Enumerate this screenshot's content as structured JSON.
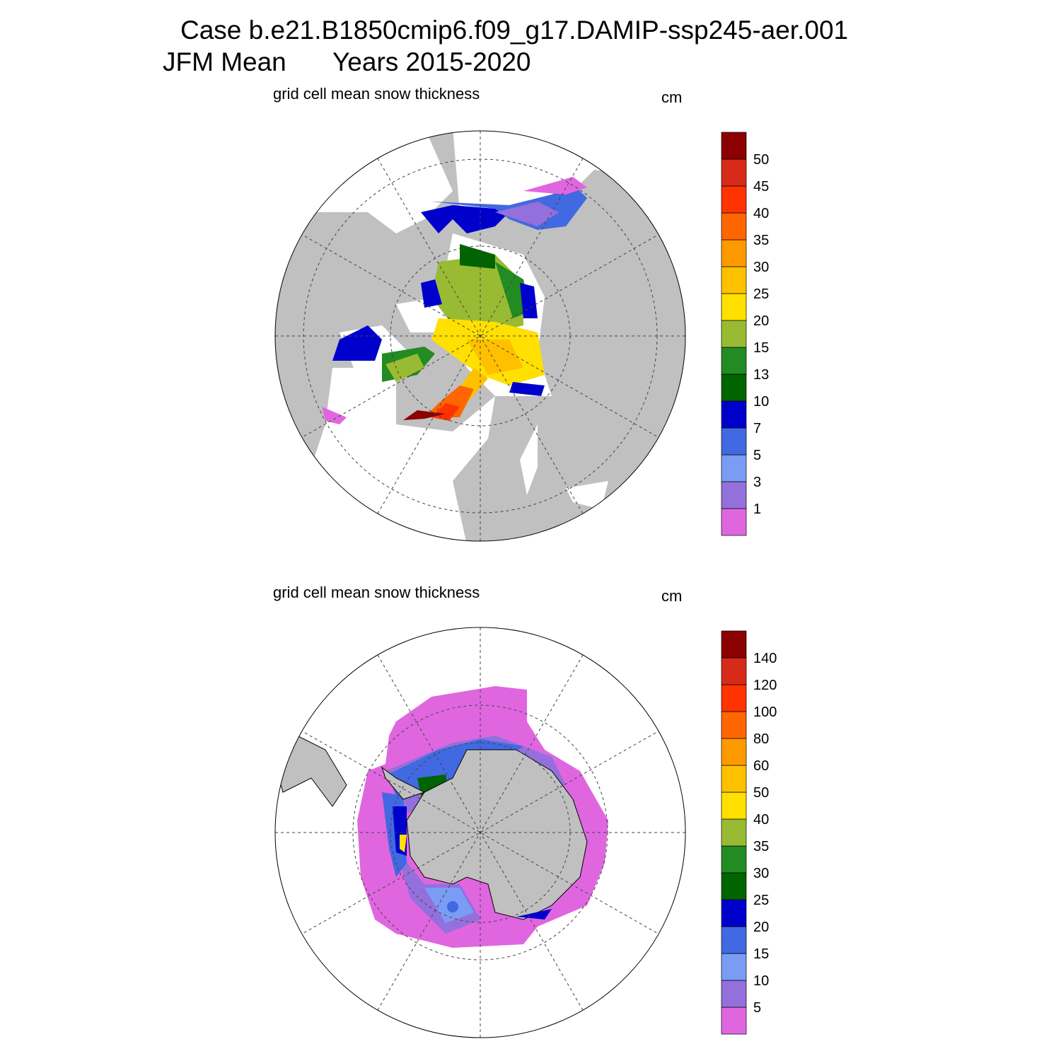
{
  "header": {
    "case": "Case b.e21.B1850cmip6.f09_g17.DAMIP-ssp245-aer.001",
    "season": "JFM Mean",
    "years": "Years 2015-2020"
  },
  "panels": [
    {
      "subtitle": "grid cell mean snow thickness",
      "units": "cm",
      "colorbar": {
        "labels": [
          "1",
          "3",
          "5",
          "7",
          "10",
          "13",
          "15",
          "20",
          "25",
          "30",
          "35",
          "40",
          "45",
          "50"
        ],
        "colors": [
          "#e066e0",
          "#9370db",
          "#7a9cf5",
          "#4169e1",
          "#0000cd",
          "#006400",
          "#228b22",
          "#99bb33",
          "#ffe000",
          "#ffc000",
          "#ff9900",
          "#ff6600",
          "#ff3300",
          "#d62b18",
          "#8b0000"
        ]
      }
    },
    {
      "subtitle": "grid cell mean snow thickness",
      "units": "cm",
      "colorbar": {
        "labels": [
          "5",
          "10",
          "15",
          "20",
          "25",
          "30",
          "35",
          "40",
          "50",
          "60",
          "80",
          "100",
          "120",
          "140"
        ],
        "colors": [
          "#e066e0",
          "#9370db",
          "#7a9cf5",
          "#4169e1",
          "#0000cd",
          "#006400",
          "#228b22",
          "#99bb33",
          "#ffe000",
          "#ffc000",
          "#ff9900",
          "#ff6600",
          "#ff3300",
          "#d62b18",
          "#8b0000"
        ]
      }
    }
  ]
}
